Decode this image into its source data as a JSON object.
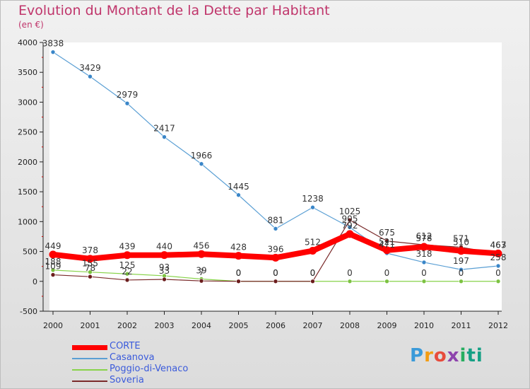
{
  "header": {
    "title": "Evolution du Montant de la Dette par Habitant",
    "subtitle": "(en €)"
  },
  "logo": {
    "text": "Proxiti",
    "icon": "proxiti-logo"
  },
  "chart_data": {
    "type": "line",
    "title": "Evolution du Montant de la Dette par Habitant",
    "subtitle": "(en €)",
    "xlabel": "",
    "ylabel": "",
    "x": [
      "2000",
      "2001",
      "2002",
      "2003",
      "2004",
      "2005",
      "2006",
      "2007",
      "2008",
      "2009",
      "2010",
      "2011",
      "2012"
    ],
    "ylim": [
      -500,
      4000
    ],
    "yticks": [
      -500,
      0,
      500,
      1000,
      1500,
      2000,
      2500,
      3000,
      3500,
      4000
    ],
    "ytick_labels": [
      "-500",
      "0",
      "500",
      "1000",
      "1500",
      "2000",
      "2500",
      "3000",
      "3500",
      "4000"
    ],
    "grid": false,
    "legend_position": "bottom-left",
    "series": [
      {
        "name": "CORTE",
        "color": "#ff0000",
        "values": [
          449,
          378,
          439,
          440,
          456,
          428,
          396,
          512,
          792,
          521,
          578,
          510,
          467
        ],
        "labels": [
          "449",
          "378",
          "439",
          "440",
          "456",
          "428",
          "396",
          "512",
          "792",
          "521",
          "578",
          "510",
          "467"
        ]
      },
      {
        "name": "Casanova",
        "color": "#5a9fd4",
        "values": [
          3838,
          3429,
          2979,
          2417,
          1966,
          1445,
          881,
          1238,
          905,
          471,
          318,
          197,
          258
        ],
        "labels": [
          "3838",
          "3429",
          "2979",
          "2417",
          "1966",
          "1445",
          "881",
          "1238",
          "905",
          "471",
          "318",
          "197",
          "258"
        ]
      },
      {
        "name": "Poggio-di-Venaco",
        "color": "#88d34a",
        "values": [
          188,
          155,
          125,
          93,
          39,
          0,
          0,
          0,
          0,
          0,
          0,
          0,
          0
        ],
        "labels": [
          "188",
          "155",
          "125",
          "93",
          "39",
          "0",
          "0",
          "0",
          "0",
          "0",
          "0",
          "0",
          "0"
        ]
      },
      {
        "name": "Soveria",
        "color": "#7a2a2a",
        "values": [
          109,
          78,
          22,
          33,
          7,
          0,
          0,
          0,
          1025,
          675,
          612,
          571,
          463
        ],
        "labels": [
          "109",
          "78",
          "22",
          "33",
          "7",
          "0",
          "0",
          "0",
          "1025",
          "675",
          "612",
          "571",
          "463"
        ]
      }
    ]
  }
}
